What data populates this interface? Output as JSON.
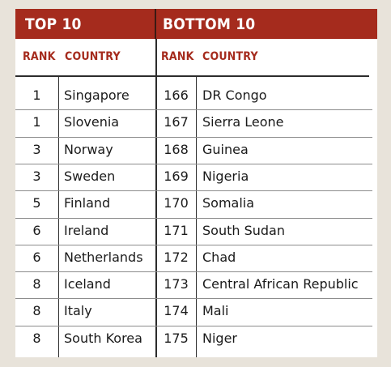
{
  "banner": {
    "top_title": "TOP 10",
    "bottom_title": "BOTTOM 10"
  },
  "headers": {
    "rank": "RANK",
    "country": "COUNTRY"
  },
  "top10": [
    {
      "rank": "1",
      "country": "Singapore"
    },
    {
      "rank": "1",
      "country": "Slovenia"
    },
    {
      "rank": "3",
      "country": "Norway"
    },
    {
      "rank": "3",
      "country": "Sweden"
    },
    {
      "rank": "5",
      "country": "Finland"
    },
    {
      "rank": "6",
      "country": "Ireland"
    },
    {
      "rank": "6",
      "country": "Netherlands"
    },
    {
      "rank": "8",
      "country": "Iceland"
    },
    {
      "rank": "8",
      "country": "Italy"
    },
    {
      "rank": "8",
      "country": "South Korea"
    }
  ],
  "bottom10": [
    {
      "rank": "166",
      "country": "DR Congo"
    },
    {
      "rank": "167",
      "country": "Sierra Leone"
    },
    {
      "rank": "168",
      "country": "Guinea"
    },
    {
      "rank": "169",
      "country": "Nigeria"
    },
    {
      "rank": "170",
      "country": "Somalia"
    },
    {
      "rank": "171",
      "country": "South Sudan"
    },
    {
      "rank": "172",
      "country": "Chad"
    },
    {
      "rank": "173",
      "country": "Central African Republic"
    },
    {
      "rank": "174",
      "country": "Mali"
    },
    {
      "rank": "175",
      "country": "Niger"
    }
  ],
  "colors": {
    "accent": "#a52b1d",
    "background": "#e8e3da",
    "text": "#1a1a1a"
  }
}
